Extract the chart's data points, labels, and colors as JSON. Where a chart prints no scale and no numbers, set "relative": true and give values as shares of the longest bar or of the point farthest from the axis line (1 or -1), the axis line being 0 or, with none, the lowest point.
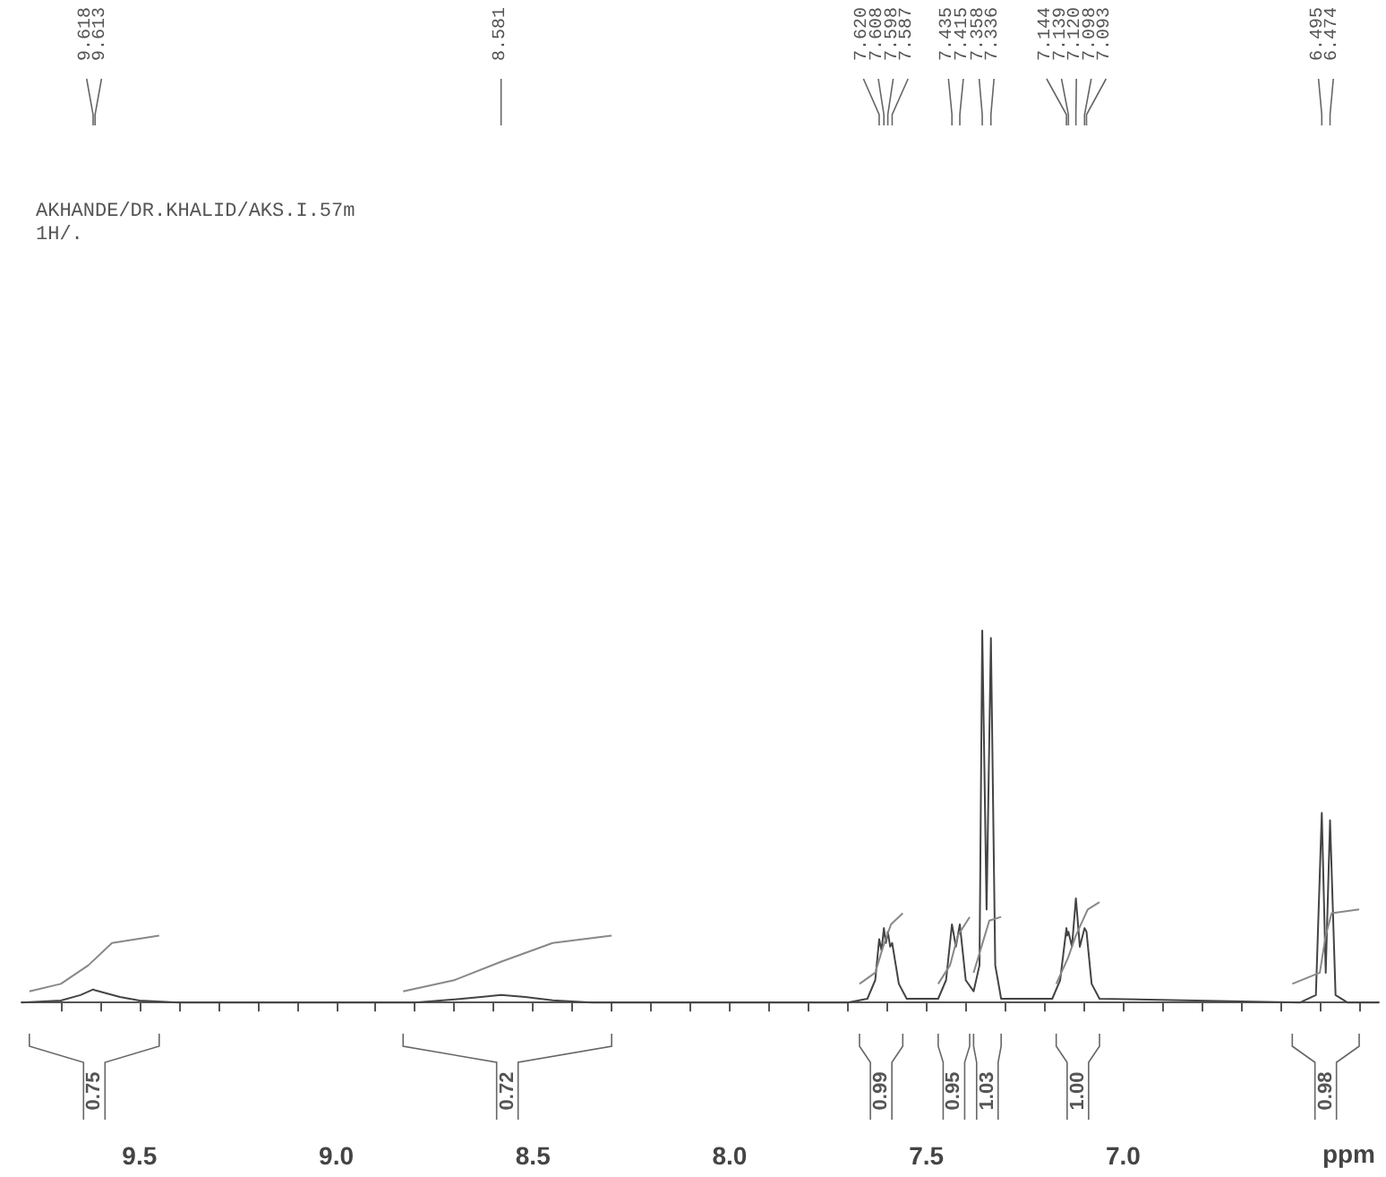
{
  "chart_data": {
    "type": "line",
    "title": "AKHANDE/DR.KHALID/AKS.I.57m",
    "subtitle": "1H/.",
    "xlabel": "ppm",
    "relative": true,
    "marker": "none",
    "tick_labels": "x",
    "xlim": [
      9.8,
      6.35
    ],
    "xticks": [
      {
        "value": 9.7,
        "label": null
      },
      {
        "value": 9.6,
        "label": null
      },
      9.5,
      {
        "value": 9.4,
        "label": null
      },
      {
        "value": 9.3,
        "label": null
      },
      {
        "value": 9.2,
        "label": null
      },
      {
        "value": 9.1,
        "label": null
      },
      {
        "value": 9,
        "label": "9.0"
      },
      {
        "value": 8.9,
        "label": null
      },
      {
        "value": 8.8,
        "label": null
      },
      {
        "value": 8.7,
        "label": null
      },
      {
        "value": 8.6,
        "label": null
      },
      8.5,
      {
        "value": 8.4,
        "label": null
      },
      {
        "value": 8.3,
        "label": null
      },
      {
        "value": 8.2,
        "label": null
      },
      {
        "value": 8.1,
        "label": null
      },
      {
        "value": 8,
        "label": "8.0"
      },
      {
        "value": 7.9,
        "label": null
      },
      {
        "value": 7.8,
        "label": null
      },
      {
        "value": 7.7,
        "label": null
      },
      {
        "value": 7.6,
        "label": null
      },
      7.5,
      {
        "value": 7.4,
        "label": null
      },
      {
        "value": 7.3,
        "label": null
      },
      {
        "value": 7.2,
        "label": null
      },
      {
        "value": 7.1,
        "label": null
      },
      {
        "value": 7,
        "label": "7.0"
      },
      {
        "value": 6.9,
        "label": null
      },
      {
        "value": 6.8,
        "label": null
      },
      {
        "value": 6.7,
        "label": null
      },
      {
        "value": 6.6,
        "label": null
      },
      {
        "value": 6.5,
        "label": null
      },
      {
        "value": 6.4,
        "label": null
      }
    ],
    "series": [
      {
        "type": "line",
        "color": "#444444",
        "x": [
          9.8,
          9.7,
          9.65,
          9.618,
          9.613,
          9.55,
          9.5,
          9.4,
          8.8,
          8.7,
          8.62,
          8.581,
          8.52,
          8.45,
          8.35,
          7.7,
          7.65,
          7.63,
          7.62,
          7.614,
          7.608,
          7.603,
          7.598,
          7.592,
          7.587,
          7.57,
          7.55,
          7.47,
          7.45,
          7.435,
          7.425,
          7.415,
          7.4,
          7.38,
          7.365,
          7.358,
          7.347,
          7.336,
          7.325,
          7.31,
          7.18,
          7.16,
          7.144,
          7.142,
          7.139,
          7.13,
          7.12,
          7.11,
          7.098,
          7.093,
          7.08,
          7.06,
          6.55,
          6.51,
          6.495,
          6.485,
          6.474,
          6.46,
          6.43,
          6.35
        ],
        "values": [
          0,
          0.005,
          0.02,
          0.035,
          0.033,
          0.015,
          0.005,
          0,
          0,
          0.008,
          0.016,
          0.02,
          0.015,
          0.006,
          0,
          0,
          0.01,
          0.06,
          0.17,
          0.14,
          0.2,
          0.16,
          0.19,
          0.15,
          0.16,
          0.05,
          0.01,
          0.01,
          0.06,
          0.21,
          0.15,
          0.21,
          0.06,
          0.03,
          0.1,
          1.0,
          0.25,
          0.98,
          0.1,
          0.01,
          0.01,
          0.06,
          0.2,
          0.18,
          0.19,
          0.15,
          0.28,
          0.15,
          0.2,
          0.19,
          0.05,
          0.01,
          0,
          0.02,
          0.51,
          0.08,
          0.49,
          0.02,
          0,
          0
        ]
      },
      {
        "type": "line",
        "color": "#888888",
        "x": [
          9.78,
          9.7,
          9.63,
          9.57,
          9.45
        ],
        "values": [
          0.03,
          0.05,
          0.1,
          0.16,
          0.18
        ]
      },
      {
        "type": "line",
        "color": "#888888",
        "x": [
          8.83,
          8.7,
          8.58,
          8.45,
          8.3
        ],
        "values": [
          0.03,
          0.06,
          0.11,
          0.16,
          0.18
        ]
      },
      {
        "type": "line",
        "color": "#888888",
        "x": [
          7.67,
          7.63,
          7.61,
          7.59,
          7.56
        ],
        "values": [
          0.05,
          0.08,
          0.15,
          0.21,
          0.24
        ]
      },
      {
        "type": "line",
        "color": "#888888",
        "x": [
          7.47,
          7.44,
          7.42,
          7.39
        ],
        "values": [
          0.05,
          0.1,
          0.18,
          0.23
        ]
      },
      {
        "type": "line",
        "color": "#888888",
        "x": [
          7.38,
          7.36,
          7.34,
          7.31
        ],
        "values": [
          0.08,
          0.15,
          0.22,
          0.23
        ]
      },
      {
        "type": "line",
        "color": "#888888",
        "x": [
          7.17,
          7.14,
          7.12,
          7.09,
          7.06
        ],
        "values": [
          0.05,
          0.12,
          0.18,
          0.25,
          0.27
        ]
      },
      {
        "type": "line",
        "color": "#888888",
        "x": [
          6.57,
          6.5,
          6.485,
          6.47,
          6.4
        ],
        "values": [
          0.05,
          0.08,
          0.18,
          0.24,
          0.25
        ]
      }
    ],
    "annotations": [
      {
        "text": "9.618",
        "x": 9.618
      },
      {
        "text": "9.613",
        "x": 9.613
      },
      {
        "text": "8.581",
        "x": 8.581
      },
      {
        "text": "7.620",
        "x": 7.62
      },
      {
        "text": "7.608",
        "x": 7.608
      },
      {
        "text": "7.598",
        "x": 7.598
      },
      {
        "text": "7.587",
        "x": 7.587
      },
      {
        "text": "7.435",
        "x": 7.435
      },
      {
        "text": "7.415",
        "x": 7.415
      },
      {
        "text": "7.358",
        "x": 7.358
      },
      {
        "text": "7.336",
        "x": 7.336
      },
      {
        "text": "7.144",
        "x": 7.144
      },
      {
        "text": "7.139",
        "x": 7.139
      },
      {
        "text": "7.120",
        "x": 7.12
      },
      {
        "text": "7.098",
        "x": 7.098
      },
      {
        "text": "7.093",
        "x": 7.093
      },
      {
        "text": "6.495",
        "x": 6.495
      },
      {
        "text": "6.474",
        "x": 6.474
      },
      "0.75",
      "0.72",
      "0.99",
      "0.95",
      "1.03",
      "1.00",
      "0.98"
    ]
  }
}
